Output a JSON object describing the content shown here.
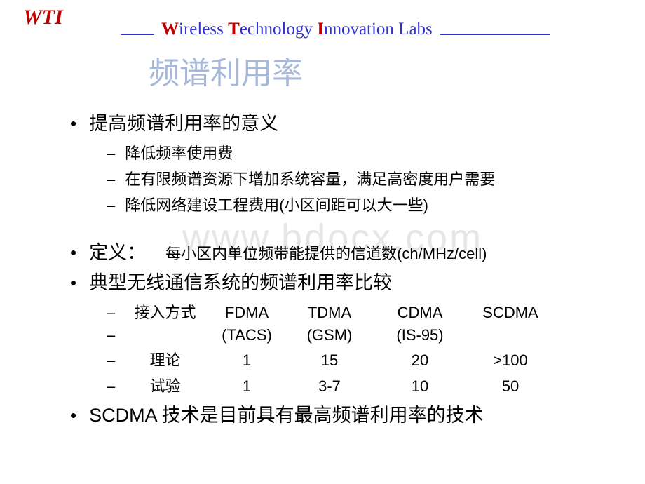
{
  "header": {
    "logo": "WTI",
    "subtitle_parts": {
      "w": "W",
      "wireless": "ireless ",
      "t": "T",
      "technology": "echnology ",
      "i": "I",
      "innovation": "nnovation Labs"
    }
  },
  "slide_title": "频谱利用率",
  "watermark": "www.bdocx.com",
  "bullets": {
    "b1": {
      "text": "提高频谱利用率的意义",
      "subs": {
        "s1": "降低频率使用费",
        "s2": "在有限频谱资源下增加系统容量，满足高密度用户需要",
        "s3": "降低网络建设工程费用(小区间距可以大一些)"
      }
    },
    "b2": {
      "label": "定义：",
      "value": "每小区内单位频带能提供的信道数(ch/MHz/cell)"
    },
    "b3": {
      "text": "典型无线通信系统的频谱利用率比较"
    },
    "b4": {
      "text": "SCDMA 技术是目前具有最高频谱利用率的技术"
    }
  },
  "table": {
    "header_name": "接入方式",
    "cols": {
      "c1": "FDMA",
      "c2": "TDMA",
      "c3": "CDMA",
      "c4": "SCDMA"
    },
    "sub": {
      "c1": "(TACS)",
      "c2": "(GSM)",
      "c3": "(IS-95)",
      "c4": ""
    },
    "row_theory": {
      "name": "理论",
      "c1": "1",
      "c2": "15",
      "c3": "20",
      "c4": ">100"
    },
    "row_trial": {
      "name": "试验",
      "c1": "1",
      "c2": "3-7",
      "c3": "10",
      "c4": "50"
    }
  },
  "colors": {
    "logo": "#c00000",
    "header_line": "#3333cc",
    "initial": "#c00000",
    "subtitle_rest": "#3333cc",
    "slide_title": "#a8b8d8",
    "text": "#000000",
    "background": "#ffffff"
  }
}
